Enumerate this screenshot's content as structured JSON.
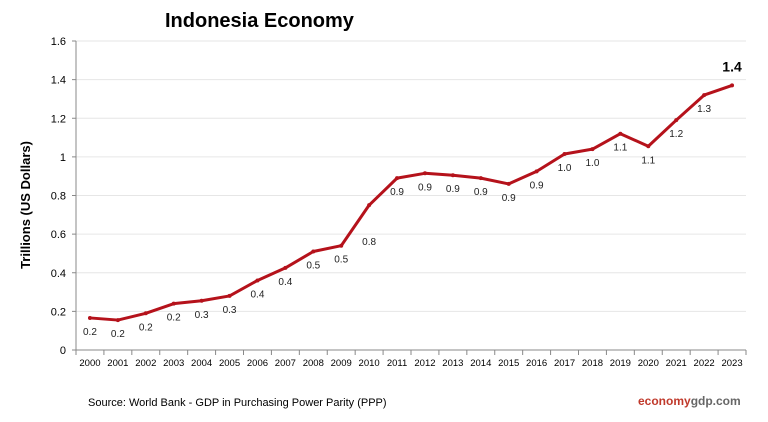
{
  "chart_data": {
    "type": "line",
    "title": "Indonesia Economy",
    "ylabel": "Trillions (US Dollars)",
    "xlabel": "",
    "ylim": [
      0,
      1.6
    ],
    "yticks": [
      "0",
      "0.2",
      "0.4",
      "0.6",
      "0.8",
      "1",
      "1.2",
      "1.4",
      "1.6"
    ],
    "grid": true,
    "categories": [
      "2000",
      "2001",
      "2002",
      "2003",
      "2004",
      "2005",
      "2006",
      "2007",
      "2008",
      "2009",
      "2010",
      "2011",
      "2012",
      "2013",
      "2014",
      "2015",
      "2016",
      "2017",
      "2018",
      "2019",
      "2020",
      "2021",
      "2022",
      "2023"
    ],
    "values": [
      0.166,
      0.155,
      0.19,
      0.24,
      0.255,
      0.28,
      0.36,
      0.425,
      0.51,
      0.54,
      0.75,
      0.89,
      0.915,
      0.905,
      0.89,
      0.86,
      0.925,
      1.015,
      1.04,
      1.12,
      1.055,
      1.19,
      1.32,
      1.37
    ],
    "data_labels": [
      "0.2",
      "0.2",
      "0.2",
      "0.2",
      "0.3",
      "0.3",
      "0.4",
      "0.4",
      "0.5",
      "0.5",
      "0.8",
      "0.9",
      "0.9",
      "0.9",
      "0.9",
      "0.9",
      "0.9",
      "1.0",
      "1.0",
      "1.1",
      "1.1",
      "1.2",
      "1.3",
      "1.4"
    ],
    "line_color": "#b5121b"
  },
  "footer": {
    "source": "Source:  World Bank -  GDP  in Purchasing Power Parity (PPP)",
    "brand_a": "economy",
    "brand_b": "gdp.com"
  }
}
